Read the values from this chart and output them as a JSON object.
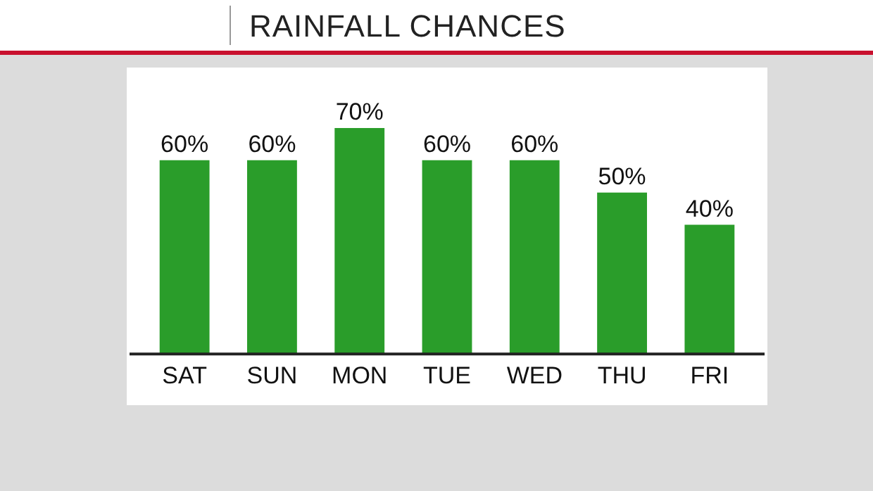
{
  "chart_data": {
    "type": "bar",
    "title": "RAINFALL CHANCES",
    "categories": [
      "SAT",
      "SUN",
      "MON",
      "TUE",
      "WED",
      "THU",
      "FRI"
    ],
    "values": [
      60,
      60,
      70,
      60,
      60,
      50,
      40
    ],
    "value_labels": [
      "60%",
      "60%",
      "70%",
      "60%",
      "60%",
      "50%",
      "40%"
    ],
    "color": "#2a9d2a",
    "grid": false,
    "legend": false
  }
}
